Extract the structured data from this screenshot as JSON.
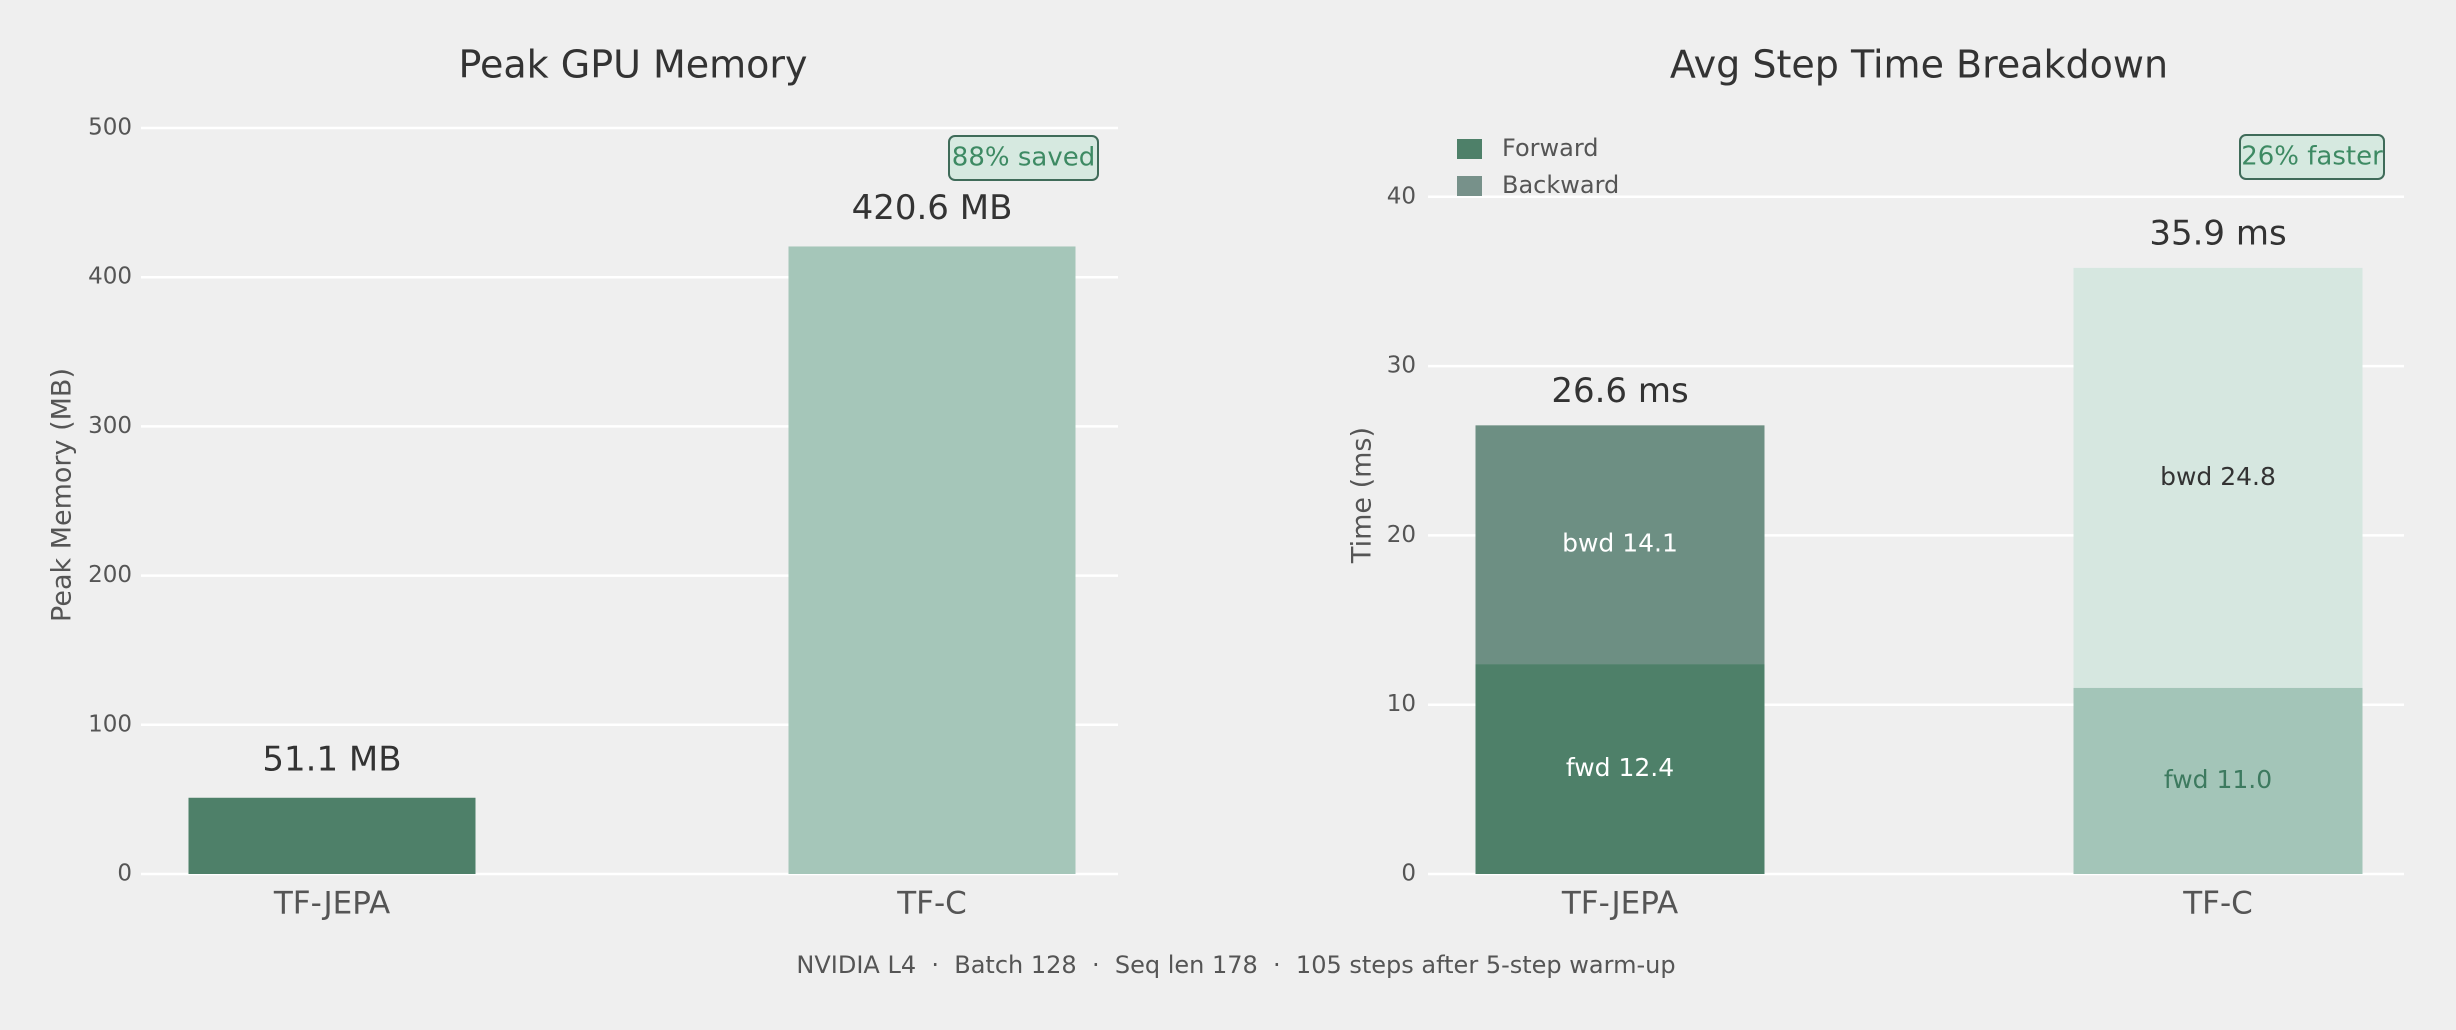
{
  "chart_data": [
    {
      "type": "bar",
      "title": "Peak GPU Memory",
      "y_label": "Peak Memory (MB)",
      "categories": [
        "TF-JEPA",
        "TF-C"
      ],
      "values": [
        51.1,
        420.6
      ],
      "value_labels": [
        "51.1 MB",
        "420.6 MB"
      ],
      "colors": [
        "#4e8069",
        "#a5c6b9"
      ],
      "ylim": [
        0,
        500
      ],
      "yticks": [
        0,
        100,
        200,
        300,
        400,
        500
      ],
      "grid": true,
      "annotation": "88% saved"
    },
    {
      "type": "stacked_bar",
      "title": "Avg Step Time Breakdown",
      "y_label": "Time (ms)",
      "categories": [
        "TF-JEPA",
        "TF-C"
      ],
      "series": [
        {
          "name": "Forward",
          "color": "#4e8069",
          "colors": [
            "#4e8069",
            "#a3c5b8"
          ],
          "values": [
            12.4,
            11.0
          ],
          "value_labels": [
            "fwd 12.4",
            "fwd 11.0"
          ],
          "label_colors": [
            "#ffffff",
            "#3d7a5f"
          ]
        },
        {
          "name": "Backward",
          "color": "#77918a",
          "colors": [
            "#6d8f83",
            "#d6e7e0"
          ],
          "values": [
            14.1,
            24.8
          ],
          "value_labels": [
            "bwd 14.1",
            "bwd 24.8"
          ],
          "label_colors": [
            "#ffffff",
            "#333333"
          ]
        }
      ],
      "total_labels": [
        "26.6 ms",
        "35.9 ms"
      ],
      "ylim": [
        0,
        43
      ],
      "yticks": [
        0,
        10,
        20,
        30,
        40
      ],
      "grid": true,
      "legend": "upper left",
      "annotation": "26% faster"
    }
  ],
  "footer": "NVIDIA L4  ·  Batch 128  ·  Seq len 178  ·  105 steps after 5-step warm-up"
}
